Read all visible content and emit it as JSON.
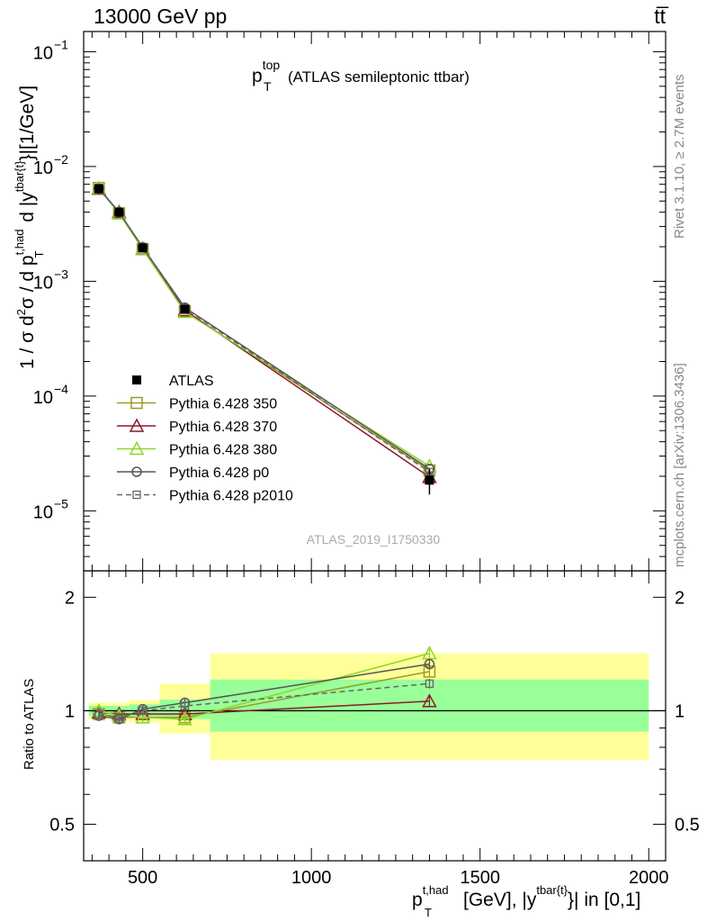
{
  "header": {
    "left": "13000 GeV pp",
    "right": "tt̅"
  },
  "side_labels": {
    "rivet": "Rivet 3.1.10, ≥ 2.7M events",
    "mcplots": "mcplots.cern.ch [arXiv:1306.3436]"
  },
  "watermark": "ATLAS_2019_I1750330",
  "chart_data": [
    {
      "type": "line",
      "title_main": "p",
      "title_sup": "top",
      "title_sub": "T",
      "title_rest": "(ATLAS semileptonic ttbar)",
      "ylabel": {
        "prefix": "1 / σ d",
        "sup2": "2",
        "mid": "σ / d p",
        "sup_had": "t,had",
        "sub_T": "T",
        "d_y": "d |y",
        "sup_tbar": "tbar{t}",
        "suffix": "}|[1/GeV]"
      },
      "xlim": [
        325,
        2050
      ],
      "ylim": [
        3e-06,
        0.15
      ],
      "yscale": "log",
      "ytick_labels": [
        {
          "value": 1e-05,
          "base": "10",
          "exp": "−5"
        },
        {
          "value": 0.0001,
          "base": "10",
          "exp": "−4"
        },
        {
          "value": 0.001,
          "base": "10",
          "exp": "−3"
        },
        {
          "value": 0.01,
          "base": "10",
          "exp": "−2"
        },
        {
          "value": 0.1,
          "base": "10",
          "exp": "−1"
        }
      ],
      "legend_position": "middle-left",
      "series": [
        {
          "name": "ATLAS",
          "color": "#000000",
          "marker": "filled-square",
          "x": [
            370,
            430,
            500,
            625,
            1350
          ],
          "y": [
            0.0064,
            0.004,
            0.00195,
            0.00057,
            1.85e-05
          ],
          "yerr_rel": [
            0.03,
            0.03,
            0.04,
            0.05,
            0.25
          ],
          "xerr": [
            [
              340,
              400
            ],
            [
              400,
              460
            ],
            [
              460,
              550
            ],
            [
              550,
              700
            ],
            [
              700,
              2000
            ]
          ]
        },
        {
          "name": "Pythia 6.428 350",
          "color": "#9a9a22",
          "marker": "open-square",
          "dash": "",
          "x": [
            370,
            430,
            500,
            625,
            1350
          ],
          "y": [
            0.0065,
            0.0039,
            0.00191,
            0.00055,
            2.25e-05
          ]
        },
        {
          "name": "Pythia 6.428 370",
          "color": "#8b1a2b",
          "marker": "open-triangle",
          "dash": "",
          "x": [
            370,
            430,
            500,
            625,
            1350
          ],
          "y": [
            0.0064,
            0.004,
            0.00192,
            0.00056,
            1.97e-05
          ]
        },
        {
          "name": "Pythia 6.428 380",
          "color": "#8ed62a",
          "marker": "open-triangle",
          "dash": "",
          "x": [
            370,
            430,
            500,
            625,
            1350
          ],
          "y": [
            0.0065,
            0.0039,
            0.0019,
            0.00054,
            2.45e-05
          ]
        },
        {
          "name": "Pythia 6.428 p0",
          "color": "#555555",
          "marker": "open-circle",
          "dash": "",
          "x": [
            370,
            430,
            500,
            625,
            1350
          ],
          "y": [
            0.0064,
            0.004,
            0.00198,
            0.00059,
            2.32e-05
          ]
        },
        {
          "name": "Pythia 6.428 p2010",
          "color": "#666666",
          "marker": "open-small-square",
          "dash": "6,4",
          "x": [
            370,
            430,
            500,
            625,
            1350
          ],
          "y": [
            0.0065,
            0.004,
            0.00196,
            0.00058,
            2.18e-05
          ]
        }
      ]
    },
    {
      "type": "line",
      "ylabel": "Ratio to ATLAS",
      "xlabel": {
        "p": "p",
        "sup_had": "t,had",
        "sub_T": "T",
        "mid": "[GeV], |y",
        "sup_tbar": "tbar{t}",
        "suffix": "}| in [0,1]"
      },
      "xlim": [
        325,
        2050
      ],
      "ylim": [
        0.4,
        2.35
      ],
      "yscale": "log",
      "ytick_labels": [
        {
          "value": 0.5,
          "label": "0.5"
        },
        {
          "value": 1,
          "label": "1"
        },
        {
          "value": 2,
          "label": "2"
        }
      ],
      "xtick_labels": [
        {
          "value": 500,
          "label": "500"
        },
        {
          "value": 1000,
          "label": "1000"
        },
        {
          "value": 1500,
          "label": "1500"
        },
        {
          "value": 2000,
          "label": "2000"
        }
      ],
      "bands": [
        {
          "x": [
            340,
            400
          ],
          "green": [
            0.97,
            1.03
          ],
          "yellow": [
            0.95,
            1.05
          ]
        },
        {
          "x": [
            400,
            460
          ],
          "green": [
            0.97,
            1.03
          ],
          "yellow": [
            0.95,
            1.05
          ]
        },
        {
          "x": [
            460,
            550
          ],
          "green": [
            0.96,
            1.04
          ],
          "yellow": [
            0.93,
            1.07
          ]
        },
        {
          "x": [
            550,
            700
          ],
          "green": [
            0.95,
            1.07
          ],
          "yellow": [
            0.87,
            1.18
          ]
        },
        {
          "x": [
            700,
            2000
          ],
          "green": [
            0.88,
            1.21
          ],
          "yellow": [
            0.74,
            1.42
          ]
        }
      ],
      "series": [
        {
          "name": "Pythia 6.428 350",
          "color": "#9a9a22",
          "marker": "open-square",
          "dash": "",
          "x": [
            370,
            430,
            500,
            625,
            1350
          ],
          "y": [
            0.98,
            0.96,
            0.96,
            0.96,
            1.27
          ]
        },
        {
          "name": "Pythia 6.428 370",
          "color": "#8b1a2b",
          "marker": "open-triangle",
          "dash": "",
          "x": [
            370,
            430,
            500,
            625,
            1350
          ],
          "y": [
            0.99,
            0.98,
            0.98,
            0.98,
            1.06
          ]
        },
        {
          "name": "Pythia 6.428 380",
          "color": "#8ed62a",
          "marker": "open-triangle",
          "dash": "",
          "x": [
            370,
            430,
            500,
            625,
            1350
          ],
          "y": [
            1.0,
            0.97,
            0.96,
            0.95,
            1.42
          ]
        },
        {
          "name": "Pythia 6.428 p0",
          "color": "#555555",
          "marker": "open-circle",
          "dash": "",
          "x": [
            370,
            430,
            500,
            625,
            1350
          ],
          "y": [
            0.97,
            0.95,
            1.01,
            1.05,
            1.33
          ]
        },
        {
          "name": "Pythia 6.428 p2010",
          "color": "#666666",
          "marker": "open-small-square",
          "dash": "6,4",
          "x": [
            370,
            430,
            500,
            625,
            1350
          ],
          "y": [
            0.98,
            0.96,
            1.0,
            1.03,
            1.18
          ]
        }
      ]
    }
  ]
}
